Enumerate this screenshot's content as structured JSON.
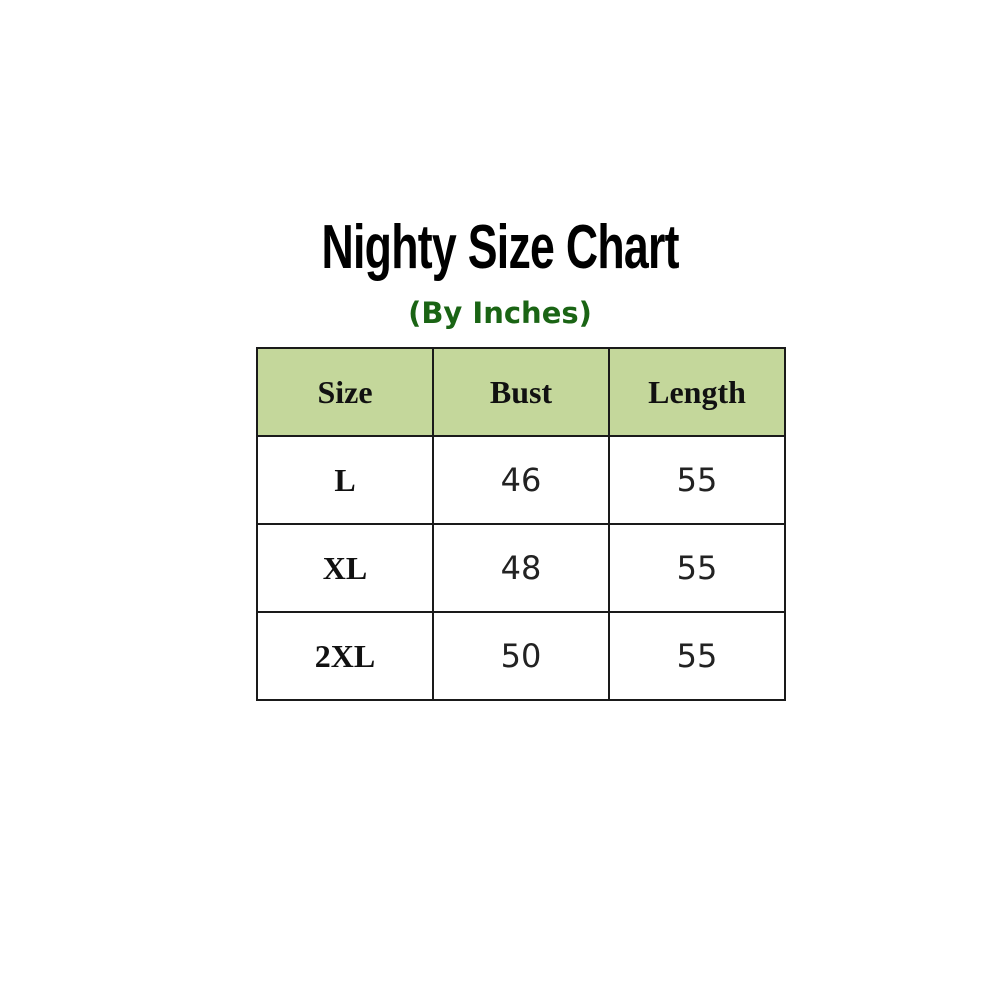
{
  "title": "Nighty Size Chart",
  "subtitle": "(By Inches)",
  "colors": {
    "header_fill": "#c4d79b",
    "subtitle": "#1a6414"
  },
  "table": {
    "headers": [
      "Size",
      "Bust",
      "Length"
    ],
    "rows": [
      [
        "L",
        "46",
        "55"
      ],
      [
        "XL",
        "48",
        "55"
      ],
      [
        "2XL",
        "50",
        "55"
      ]
    ]
  }
}
